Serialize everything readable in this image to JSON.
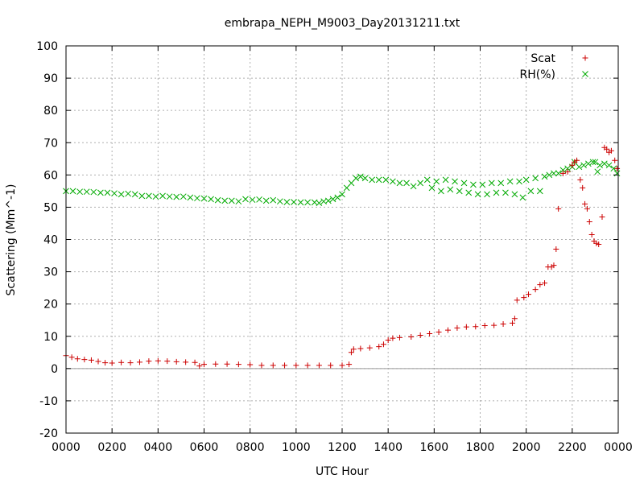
{
  "chart_data": {
    "type": "scatter",
    "title": "embrapa_NEPH_M9003_Day20131211.txt",
    "xlabel": "UTC Hour",
    "ylabel": "Scattering (Mm^-1)",
    "xlim": [
      0,
      2400
    ],
    "ylim": [
      -20,
      100
    ],
    "x_tick_labels": [
      "0000",
      "0200",
      "0400",
      "0600",
      "0800",
      "1000",
      "1200",
      "1400",
      "1600",
      "1800",
      "2000",
      "2200",
      "0000"
    ],
    "y_tick_labels": [
      "-20",
      "-10",
      "0",
      "10",
      "20",
      "30",
      "40",
      "50",
      "60",
      "70",
      "80",
      "90",
      "100"
    ],
    "grid": true,
    "legend_position": "top-right",
    "colors": {
      "scat": "#cc0000",
      "rh": "#00aa00"
    },
    "series": [
      {
        "name": "Scat",
        "marker": "plus",
        "points": [
          [
            0,
            4.0
          ],
          [
            25,
            3.5
          ],
          [
            50,
            3.0
          ],
          [
            80,
            2.8
          ],
          [
            110,
            2.6
          ],
          [
            140,
            2.2
          ],
          [
            170,
            1.8
          ],
          [
            200,
            1.7
          ],
          [
            240,
            1.9
          ],
          [
            280,
            1.8
          ],
          [
            320,
            2.0
          ],
          [
            360,
            2.3
          ],
          [
            400,
            2.4
          ],
          [
            440,
            2.3
          ],
          [
            480,
            2.1
          ],
          [
            520,
            2.0
          ],
          [
            560,
            1.9
          ],
          [
            580,
            0.8
          ],
          [
            600,
            1.3
          ],
          [
            650,
            1.4
          ],
          [
            700,
            1.4
          ],
          [
            750,
            1.3
          ],
          [
            800,
            1.2
          ],
          [
            850,
            1.0
          ],
          [
            900,
            1.0
          ],
          [
            950,
            1.0
          ],
          [
            1000,
            1.0
          ],
          [
            1050,
            1.0
          ],
          [
            1100,
            1.0
          ],
          [
            1150,
            1.0
          ],
          [
            1200,
            1.0
          ],
          [
            1230,
            1.3
          ],
          [
            1240,
            5.0
          ],
          [
            1250,
            6.0
          ],
          [
            1280,
            6.2
          ],
          [
            1320,
            6.4
          ],
          [
            1360,
            6.8
          ],
          [
            1380,
            7.5
          ],
          [
            1400,
            8.8
          ],
          [
            1420,
            9.4
          ],
          [
            1450,
            9.6
          ],
          [
            1500,
            9.8
          ],
          [
            1540,
            10.3
          ],
          [
            1580,
            10.8
          ],
          [
            1620,
            11.3
          ],
          [
            1660,
            11.9
          ],
          [
            1700,
            12.6
          ],
          [
            1740,
            12.9
          ],
          [
            1780,
            13.0
          ],
          [
            1820,
            13.3
          ],
          [
            1860,
            13.4
          ],
          [
            1900,
            13.8
          ],
          [
            1940,
            14.1
          ],
          [
            1950,
            15.5
          ],
          [
            1960,
            21.2
          ],
          [
            1990,
            22.0
          ],
          [
            2010,
            23.0
          ],
          [
            2040,
            24.5
          ],
          [
            2060,
            26.0
          ],
          [
            2080,
            26.5
          ],
          [
            2095,
            31.5
          ],
          [
            2110,
            31.5
          ],
          [
            2120,
            32.0
          ],
          [
            2130,
            37.0
          ],
          [
            2140,
            49.5
          ],
          [
            2160,
            60.5
          ],
          [
            2180,
            61.0
          ],
          [
            2200,
            63.0
          ],
          [
            2210,
            64.0
          ],
          [
            2220,
            64.5
          ],
          [
            2235,
            58.5
          ],
          [
            2245,
            56.0
          ],
          [
            2255,
            51.0
          ],
          [
            2265,
            49.5
          ],
          [
            2275,
            45.5
          ],
          [
            2285,
            41.5
          ],
          [
            2295,
            39.5
          ],
          [
            2305,
            38.8
          ],
          [
            2315,
            38.5
          ],
          [
            2330,
            47.0
          ],
          [
            2340,
            68.5
          ],
          [
            2350,
            68.0
          ],
          [
            2360,
            67.0
          ],
          [
            2370,
            67.5
          ],
          [
            2385,
            64.5
          ],
          [
            2395,
            62.0
          ]
        ]
      },
      {
        "name": "RH(%)",
        "marker": "cross",
        "points": [
          [
            0,
            55.0
          ],
          [
            30,
            55.0
          ],
          [
            60,
            54.8
          ],
          [
            90,
            54.8
          ],
          [
            120,
            54.7
          ],
          [
            150,
            54.5
          ],
          [
            180,
            54.5
          ],
          [
            210,
            54.3
          ],
          [
            240,
            54.0
          ],
          [
            270,
            54.2
          ],
          [
            300,
            54.0
          ],
          [
            330,
            53.5
          ],
          [
            360,
            53.5
          ],
          [
            390,
            53.3
          ],
          [
            420,
            53.5
          ],
          [
            450,
            53.3
          ],
          [
            480,
            53.2
          ],
          [
            510,
            53.3
          ],
          [
            540,
            53.0
          ],
          [
            570,
            52.8
          ],
          [
            600,
            52.7
          ],
          [
            630,
            52.5
          ],
          [
            660,
            52.2
          ],
          [
            690,
            52.0
          ],
          [
            720,
            52.0
          ],
          [
            750,
            51.8
          ],
          [
            780,
            52.5
          ],
          [
            810,
            52.3
          ],
          [
            840,
            52.4
          ],
          [
            870,
            52.0
          ],
          [
            900,
            52.2
          ],
          [
            930,
            51.8
          ],
          [
            960,
            51.6
          ],
          [
            990,
            51.6
          ],
          [
            1020,
            51.5
          ],
          [
            1050,
            51.5
          ],
          [
            1080,
            51.5
          ],
          [
            1100,
            51.3
          ],
          [
            1120,
            51.8
          ],
          [
            1140,
            52.0
          ],
          [
            1160,
            52.5
          ],
          [
            1180,
            53.0
          ],
          [
            1200,
            54.0
          ],
          [
            1220,
            56.0
          ],
          [
            1240,
            57.5
          ],
          [
            1260,
            59.0
          ],
          [
            1280,
            59.5
          ],
          [
            1300,
            59.0
          ],
          [
            1330,
            58.5
          ],
          [
            1360,
            58.5
          ],
          [
            1390,
            58.5
          ],
          [
            1420,
            58.0
          ],
          [
            1450,
            57.5
          ],
          [
            1480,
            57.5
          ],
          [
            1510,
            56.5
          ],
          [
            1540,
            57.5
          ],
          [
            1570,
            58.5
          ],
          [
            1590,
            56.0
          ],
          [
            1610,
            58.0
          ],
          [
            1630,
            55.0
          ],
          [
            1650,
            58.5
          ],
          [
            1670,
            55.5
          ],
          [
            1690,
            58.0
          ],
          [
            1710,
            55.0
          ],
          [
            1730,
            57.5
          ],
          [
            1750,
            54.5
          ],
          [
            1770,
            57.0
          ],
          [
            1790,
            54.0
          ],
          [
            1810,
            57.0
          ],
          [
            1830,
            54.0
          ],
          [
            1850,
            57.5
          ],
          [
            1870,
            54.5
          ],
          [
            1890,
            57.5
          ],
          [
            1910,
            54.5
          ],
          [
            1930,
            58.0
          ],
          [
            1950,
            54.0
          ],
          [
            1970,
            58.0
          ],
          [
            1985,
            53.0
          ],
          [
            2000,
            58.5
          ],
          [
            2020,
            55.0
          ],
          [
            2040,
            59.0
          ],
          [
            2060,
            55.0
          ],
          [
            2080,
            59.5
          ],
          [
            2100,
            60.0
          ],
          [
            2120,
            60.5
          ],
          [
            2140,
            60.5
          ],
          [
            2160,
            61.5
          ],
          [
            2180,
            62.0
          ],
          [
            2200,
            62.5
          ],
          [
            2210,
            64.0
          ],
          [
            2230,
            62.5
          ],
          [
            2250,
            63.0
          ],
          [
            2270,
            63.5
          ],
          [
            2290,
            64.0
          ],
          [
            2300,
            64.0
          ],
          [
            2310,
            61.0
          ],
          [
            2320,
            63.0
          ],
          [
            2340,
            63.5
          ],
          [
            2360,
            63.0
          ],
          [
            2380,
            62.0
          ],
          [
            2395,
            60.5
          ]
        ]
      }
    ]
  }
}
